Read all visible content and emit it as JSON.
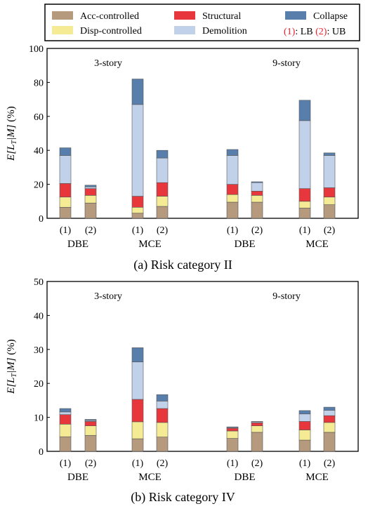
{
  "legend": {
    "items": [
      {
        "key": "acc",
        "label": "Acc-controlled",
        "color": "#b59a7d"
      },
      {
        "key": "disp",
        "label": "Disp-controlled",
        "color": "#f4eb94"
      },
      {
        "key": "struct",
        "label": "Structural",
        "color": "#e8373c"
      },
      {
        "key": "demo",
        "label": "Demolition",
        "color": "#c2d1ea"
      },
      {
        "key": "coll",
        "label": "Collapse",
        "color": "#587fab"
      }
    ],
    "note": {
      "n1": "(1)",
      "lb": ": LB ",
      "n2": "(2)",
      "ub": ": UB",
      "accent": "#e8222b"
    }
  },
  "chart_data": [
    {
      "type": "bar",
      "stacked": true,
      "title": "(a) Risk category II",
      "ylabel": "E[L_T|M] (%)",
      "ylim": [
        0,
        100
      ],
      "yticks": [
        0,
        20,
        40,
        60,
        80,
        100
      ],
      "groups": [
        {
          "label": "3-story",
          "bars": [
            {
              "tick": "(1)",
              "cat": "DBE",
              "values": [
                6.5,
                6.0,
                8.0,
                16.5,
                4.5
              ]
            },
            {
              "tick": "(2)",
              "cat": "DBE",
              "values": [
                9.0,
                4.5,
                4.0,
                1.0,
                1.0
              ]
            },
            {
              "tick": "(1)",
              "cat": "MCE",
              "values": [
                3.0,
                3.5,
                6.5,
                54.0,
                15.0
              ]
            },
            {
              "tick": "(2)",
              "cat": "MCE",
              "values": [
                7.0,
                6.0,
                8.0,
                14.5,
                4.5
              ]
            }
          ]
        },
        {
          "label": "9-story",
          "bars": [
            {
              "tick": "(1)",
              "cat": "DBE",
              "values": [
                9.5,
                4.5,
                6.0,
                17.0,
                3.5
              ]
            },
            {
              "tick": "(2)",
              "cat": "DBE",
              "values": [
                9.5,
                4.0,
                2.5,
                5.0,
                0.5
              ]
            },
            {
              "tick": "(1)",
              "cat": "MCE",
              "values": [
                6.0,
                4.0,
                7.5,
                40.0,
                12.0
              ]
            },
            {
              "tick": "(2)",
              "cat": "MCE",
              "values": [
                8.0,
                4.5,
                5.5,
                19.0,
                1.5
              ]
            }
          ]
        }
      ],
      "series": [
        "Acc-controlled",
        "Disp-controlled",
        "Structural",
        "Demolition",
        "Collapse"
      ]
    },
    {
      "type": "bar",
      "stacked": true,
      "title": "(b) Risk category IV",
      "ylabel": "E[L_T|M] (%)",
      "ylim": [
        0,
        50
      ],
      "yticks": [
        0,
        10,
        20,
        30,
        40,
        50
      ],
      "groups": [
        {
          "label": "3-story",
          "bars": [
            {
              "tick": "(1)",
              "cat": "DBE",
              "values": [
                4.3,
                3.7,
                2.8,
                0.8,
                1.0
              ]
            },
            {
              "tick": "(2)",
              "cat": "DBE",
              "values": [
                4.7,
                2.8,
                1.3,
                0.3,
                0.3
              ]
            },
            {
              "tick": "(1)",
              "cat": "MCE",
              "values": [
                3.7,
                5.0,
                6.6,
                11.0,
                4.2
              ]
            },
            {
              "tick": "(2)",
              "cat": "MCE",
              "values": [
                4.2,
                4.3,
                4.1,
                2.2,
                1.9
              ]
            }
          ]
        },
        {
          "label": "9-story",
          "bars": [
            {
              "tick": "(1)",
              "cat": "DBE",
              "values": [
                3.8,
                2.2,
                0.8,
                0.2,
                0.2
              ]
            },
            {
              "tick": "(2)",
              "cat": "DBE",
              "values": [
                5.6,
                1.9,
                0.9,
                0.3,
                0.1
              ]
            },
            {
              "tick": "(1)",
              "cat": "MCE",
              "values": [
                3.3,
                3.0,
                2.5,
                2.2,
                1.0
              ]
            },
            {
              "tick": "(2)",
              "cat": "MCE",
              "values": [
                5.6,
                2.9,
                2.0,
                1.6,
                0.9
              ]
            }
          ]
        }
      ],
      "series": [
        "Acc-controlled",
        "Disp-controlled",
        "Structural",
        "Demolition",
        "Collapse"
      ]
    }
  ]
}
